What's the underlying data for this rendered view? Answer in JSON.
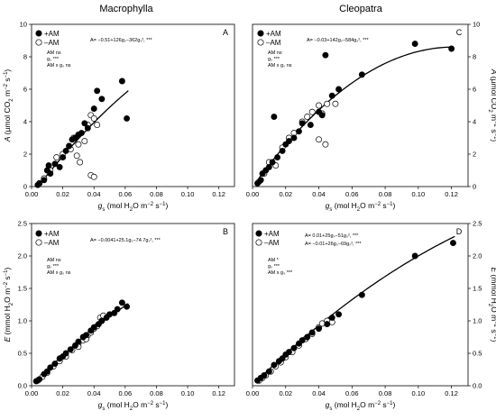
{
  "titles": {
    "left": "Macrophylla",
    "right": "Cleopatra"
  },
  "legend": {
    "am_plus": "+AM",
    "am_minus": "–AM"
  },
  "stats": {
    "A": [
      "AM  ns",
      "gₛ ***",
      "AM x gₛ ns"
    ],
    "B": [
      "AM  ns",
      "gₛ ***",
      "AM x gₛ ns"
    ],
    "C": [
      "AM  ns",
      "gₛ ***",
      "AM x gₛ ns"
    ],
    "D": [
      "AM  *",
      "gₛ ***",
      "AM x gₛ ***"
    ]
  },
  "chart_data": [
    {
      "panel": "A",
      "type": "scatter",
      "xlabel": "gs (mol H2O m-2 s-1)",
      "ylabel": "A (µmol CO2 m-2 s-1)",
      "xlim": [
        0,
        0.13
      ],
      "ylim": [
        0,
        10
      ],
      "xticks": [
        "0.00",
        "0.02",
        "0.04",
        "0.06",
        "0.08",
        "0.10",
        "0.12"
      ],
      "yticks": [
        "0",
        "2",
        "4",
        "6",
        "8",
        "10"
      ],
      "equation": "A= −0.51+126gₛ−362gₛ², ***",
      "curve": {
        "a": -0.51,
        "b": 126,
        "c": -362,
        "xmin": 0.004,
        "xmax": 0.062
      },
      "series": [
        {
          "name": "+AM",
          "points": [
            [
              0.004,
              0.1
            ],
            [
              0.005,
              0.2
            ],
            [
              0.008,
              0.4
            ],
            [
              0.01,
              1.0
            ],
            [
              0.011,
              1.3
            ],
            [
              0.012,
              0.8
            ],
            [
              0.015,
              1.4
            ],
            [
              0.018,
              1.2
            ],
            [
              0.02,
              1.8
            ],
            [
              0.022,
              2.2
            ],
            [
              0.024,
              2.5
            ],
            [
              0.026,
              2.9
            ],
            [
              0.028,
              3.0
            ],
            [
              0.03,
              3.2
            ],
            [
              0.032,
              3.3
            ],
            [
              0.034,
              3.9
            ],
            [
              0.036,
              3.6
            ],
            [
              0.04,
              4.8
            ],
            [
              0.042,
              5.9
            ],
            [
              0.045,
              5.4
            ],
            [
              0.058,
              6.5
            ],
            [
              0.061,
              4.2
            ]
          ]
        },
        {
          "name": "–AM",
          "points": [
            [
              0.005,
              0.2
            ],
            [
              0.008,
              0.5
            ],
            [
              0.012,
              1.0
            ],
            [
              0.016,
              1.8
            ],
            [
              0.02,
              2.0
            ],
            [
              0.025,
              2.3
            ],
            [
              0.027,
              3.0
            ],
            [
              0.029,
              1.9
            ],
            [
              0.03,
              2.6
            ],
            [
              0.031,
              1.5
            ],
            [
              0.034,
              2.8
            ],
            [
              0.036,
              3.8
            ],
            [
              0.038,
              4.4
            ],
            [
              0.04,
              4.2
            ],
            [
              0.042,
              3.8
            ],
            [
              0.038,
              0.7
            ],
            [
              0.04,
              0.6
            ]
          ]
        }
      ]
    },
    {
      "panel": "B",
      "type": "scatter",
      "xlabel": "gs (mol H2O m-2 s-1)",
      "ylabel": "E (mmol H2O m-2 s-1)",
      "xlim": [
        0,
        0.13
      ],
      "ylim": [
        0,
        2.5
      ],
      "xticks": [
        "0.00",
        "0.02",
        "0.04",
        "0.06",
        "0.08",
        "0.10",
        "0.12"
      ],
      "yticks": [
        "0.0",
        "0.5",
        "1.0",
        "1.5",
        "2.0",
        "2.5"
      ],
      "equation": "A= −0.0041+25.1gₛ−74.7gₛ², ***",
      "curve": {
        "a": -0.0041,
        "b": 25.1,
        "c": -74.7,
        "xmin": 0.003,
        "xmax": 0.062
      },
      "series": [
        {
          "name": "+AM",
          "points": [
            [
              0.003,
              0.07
            ],
            [
              0.005,
              0.1
            ],
            [
              0.008,
              0.18
            ],
            [
              0.01,
              0.22
            ],
            [
              0.012,
              0.28
            ],
            [
              0.015,
              0.34
            ],
            [
              0.018,
              0.42
            ],
            [
              0.02,
              0.45
            ],
            [
              0.022,
              0.5
            ],
            [
              0.025,
              0.56
            ],
            [
              0.028,
              0.62
            ],
            [
              0.03,
              0.68
            ],
            [
              0.033,
              0.75
            ],
            [
              0.035,
              0.78
            ],
            [
              0.038,
              0.85
            ],
            [
              0.04,
              0.9
            ],
            [
              0.043,
              0.95
            ],
            [
              0.045,
              1.0
            ],
            [
              0.048,
              1.05
            ],
            [
              0.05,
              1.1
            ],
            [
              0.053,
              1.12
            ],
            [
              0.055,
              1.18
            ],
            [
              0.058,
              1.28
            ],
            [
              0.061,
              1.22
            ]
          ]
        },
        {
          "name": "–AM",
          "points": [
            [
              0.004,
              0.08
            ],
            [
              0.007,
              0.14
            ],
            [
              0.01,
              0.2
            ],
            [
              0.014,
              0.3
            ],
            [
              0.018,
              0.38
            ],
            [
              0.022,
              0.45
            ],
            [
              0.026,
              0.55
            ],
            [
              0.03,
              0.65
            ],
            [
              0.033,
              0.7
            ],
            [
              0.036,
              0.78
            ],
            [
              0.038,
              0.82
            ],
            [
              0.04,
              0.88
            ],
            [
              0.042,
              0.92
            ],
            [
              0.044,
              1.05
            ],
            [
              0.046,
              1.08
            ],
            [
              0.03,
              0.6
            ],
            [
              0.035,
              0.72
            ]
          ]
        }
      ]
    },
    {
      "panel": "C",
      "type": "scatter",
      "xlabel": "gs (mol H2O m-2 s-1)",
      "ylabel": "A (µmol CO2 m-2 s-1)",
      "xlim": [
        0,
        0.13
      ],
      "ylim": [
        0,
        10
      ],
      "xticks": [
        "0.00",
        "0.02",
        "0.04",
        "0.06",
        "0.08",
        "0.10",
        "0.12"
      ],
      "yticks": [
        "0",
        "2",
        "4",
        "6",
        "8",
        "10"
      ],
      "equation": "A= −0.03+142gₛ−584gₛ², ***",
      "curve": {
        "a": -0.03,
        "b": 142,
        "c": -584,
        "xmin": 0.003,
        "xmax": 0.121
      },
      "series": [
        {
          "name": "+AM",
          "points": [
            [
              0.003,
              0.2
            ],
            [
              0.005,
              0.4
            ],
            [
              0.006,
              0.8
            ],
            [
              0.008,
              1.0
            ],
            [
              0.01,
              1.2
            ],
            [
              0.012,
              1.5
            ],
            [
              0.013,
              4.3
            ],
            [
              0.015,
              1.8
            ],
            [
              0.018,
              2.2
            ],
            [
              0.02,
              2.6
            ],
            [
              0.022,
              2.8
            ],
            [
              0.025,
              3.0
            ],
            [
              0.028,
              3.4
            ],
            [
              0.03,
              3.9
            ],
            [
              0.035,
              3.8
            ],
            [
              0.04,
              4.6
            ],
            [
              0.042,
              4.4
            ],
            [
              0.044,
              8.1
            ],
            [
              0.048,
              5.6
            ],
            [
              0.052,
              6.0
            ],
            [
              0.066,
              6.9
            ],
            [
              0.098,
              8.8
            ],
            [
              0.12,
              8.5
            ]
          ]
        },
        {
          "name": "–AM",
          "points": [
            [
              0.004,
              0.3
            ],
            [
              0.007,
              0.8
            ],
            [
              0.01,
              1.5
            ],
            [
              0.014,
              1.3
            ],
            [
              0.018,
              2.4
            ],
            [
              0.022,
              3.0
            ],
            [
              0.025,
              3.3
            ],
            [
              0.03,
              4.0
            ],
            [
              0.033,
              4.3
            ],
            [
              0.036,
              4.6
            ],
            [
              0.04,
              5.0
            ],
            [
              0.042,
              4.5
            ],
            [
              0.045,
              5.1
            ],
            [
              0.05,
              5.1
            ],
            [
              0.04,
              2.9
            ],
            [
              0.044,
              2.6
            ]
          ]
        }
      ]
    },
    {
      "panel": "D",
      "type": "scatter",
      "xlabel": "gs (mol H2O m-2 s-1)",
      "ylabel": "E (mmol H2O m-2 s-1)",
      "xlim": [
        0,
        0.13
      ],
      "ylim": [
        0,
        2.5
      ],
      "xticks": [
        "0.00",
        "0.02",
        "0.04",
        "0.06",
        "0.08",
        "0.10",
        "0.12"
      ],
      "yticks": [
        "0.0",
        "0.5",
        "1.0",
        "1.5",
        "2.0",
        "2.5"
      ],
      "equations": [
        "A= 0.01+25gₛ−51gₛ², ***",
        "A= −0.01+26gₛ−69gₛ², ***"
      ],
      "curve": {
        "a": 0.01,
        "b": 25,
        "c": -51,
        "xmin": 0.003,
        "xmax": 0.122
      },
      "series": [
        {
          "name": "+AM",
          "points": [
            [
              0.003,
              0.08
            ],
            [
              0.005,
              0.12
            ],
            [
              0.007,
              0.16
            ],
            [
              0.01,
              0.22
            ],
            [
              0.013,
              0.32
            ],
            [
              0.016,
              0.38
            ],
            [
              0.018,
              0.42
            ],
            [
              0.02,
              0.48
            ],
            [
              0.022,
              0.52
            ],
            [
              0.025,
              0.58
            ],
            [
              0.028,
              0.65
            ],
            [
              0.03,
              0.7
            ],
            [
              0.033,
              0.75
            ],
            [
              0.036,
              0.82
            ],
            [
              0.04,
              0.88
            ],
            [
              0.045,
              0.95
            ],
            [
              0.048,
              1.05
            ],
            [
              0.052,
              1.1
            ],
            [
              0.066,
              1.4
            ],
            [
              0.098,
              2.0
            ],
            [
              0.121,
              2.2
            ]
          ]
        },
        {
          "name": "–AM",
          "points": [
            [
              0.004,
              0.08
            ],
            [
              0.006,
              0.12
            ],
            [
              0.008,
              0.16
            ],
            [
              0.011,
              0.22
            ],
            [
              0.014,
              0.3
            ],
            [
              0.017,
              0.36
            ],
            [
              0.02,
              0.44
            ],
            [
              0.024,
              0.52
            ],
            [
              0.028,
              0.62
            ],
            [
              0.032,
              0.72
            ],
            [
              0.036,
              0.8
            ],
            [
              0.04,
              0.9
            ],
            [
              0.042,
              0.96
            ],
            [
              0.045,
              1.0
            ],
            [
              0.048,
              0.98
            ]
          ]
        }
      ]
    }
  ]
}
